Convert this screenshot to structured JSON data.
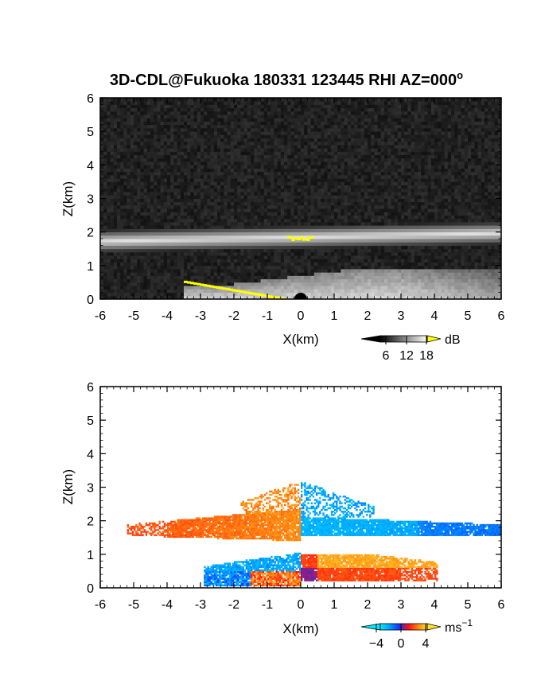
{
  "figure": {
    "title_main": "3D-CDL@Fukuoka 180331 123445 RHI AZ=000",
    "title_sup": "o"
  },
  "chart_data": [
    {
      "type": "heatmap",
      "variable": "backscatter intensity",
      "xlabel": "X(km)",
      "ylabel": "Z(km)",
      "xlim": [
        -6,
        6
      ],
      "ylim": [
        0,
        6
      ],
      "x_ticks": [
        "-6",
        "-5",
        "-4",
        "-3",
        "-2",
        "-1",
        "0",
        "1",
        "2",
        "3",
        "4",
        "5",
        "6"
      ],
      "y_ticks": [
        "0",
        "1",
        "2",
        "3",
        "4",
        "5",
        "6"
      ],
      "colorbar": {
        "unit": "dB",
        "tick_labels": [
          "6",
          "12",
          "18"
        ],
        "colormap": "grayscale",
        "colors": [
          "#000000",
          "#ffffff",
          "#ffff00"
        ]
      },
      "features": [
        {
          "name": "elevated aerosol layer",
          "x_range": [
            -6,
            6
          ],
          "z_center": 1.85,
          "z_thickness": 0.35
        },
        {
          "name": "boundary layer",
          "x_range": [
            -3.5,
            6
          ],
          "z_range": [
            0,
            0.9
          ]
        },
        {
          "name": "saturated near-ground echo",
          "x_range": [
            -3.5,
            -0.6
          ],
          "z_range": [
            0.0,
            0.5
          ],
          "color": "#ffff00"
        },
        {
          "name": "saturated layer echo",
          "x_range": [
            -0.4,
            0.3
          ],
          "z_center": 1.85,
          "color": "#ffff00"
        }
      ]
    },
    {
      "type": "heatmap",
      "variable": "radial velocity",
      "xlabel": "X(km)",
      "ylabel": "Z(km)",
      "xlim": [
        -6,
        6
      ],
      "ylim": [
        0,
        6
      ],
      "x_ticks": [
        "-6",
        "-5",
        "-4",
        "-3",
        "-2",
        "-1",
        "0",
        "1",
        "2",
        "3",
        "4",
        "5",
        "6"
      ],
      "y_ticks": [
        "0",
        "1",
        "2",
        "3",
        "4",
        "5",
        "6"
      ],
      "colorbar": {
        "unit": "ms",
        "unit_sup": "−1",
        "tick_labels": [
          "−4",
          "0",
          "4"
        ],
        "range": [
          -5,
          5
        ],
        "colors": [
          "#00e8ff",
          "#00a0ff",
          "#1030ff",
          "#ff1010",
          "#ff8010",
          "#ffe030"
        ]
      },
      "features": [
        {
          "name": "upper layer, toward radar",
          "x_range": [
            -5.2,
            0.0
          ],
          "z_range": [
            1.7,
            2.1
          ],
          "velocity": 3
        },
        {
          "name": "upper layer, away from radar",
          "x_range": [
            0.0,
            6.0
          ],
          "z_range": [
            1.6,
            2.1
          ],
          "velocity": -3
        },
        {
          "name": "upper layer tops",
          "x_range": [
            -1.8,
            2.2
          ],
          "z_range": [
            2.1,
            3.2
          ]
        },
        {
          "name": "lower layer, left",
          "x_range": [
            -2.9,
            0.0
          ],
          "z_range": [
            0.05,
            1.1
          ]
        },
        {
          "name": "lower layer, right",
          "x_range": [
            0.0,
            4.1
          ],
          "z_range": [
            0.2,
            1.05
          ],
          "velocity": 2
        }
      ]
    }
  ]
}
